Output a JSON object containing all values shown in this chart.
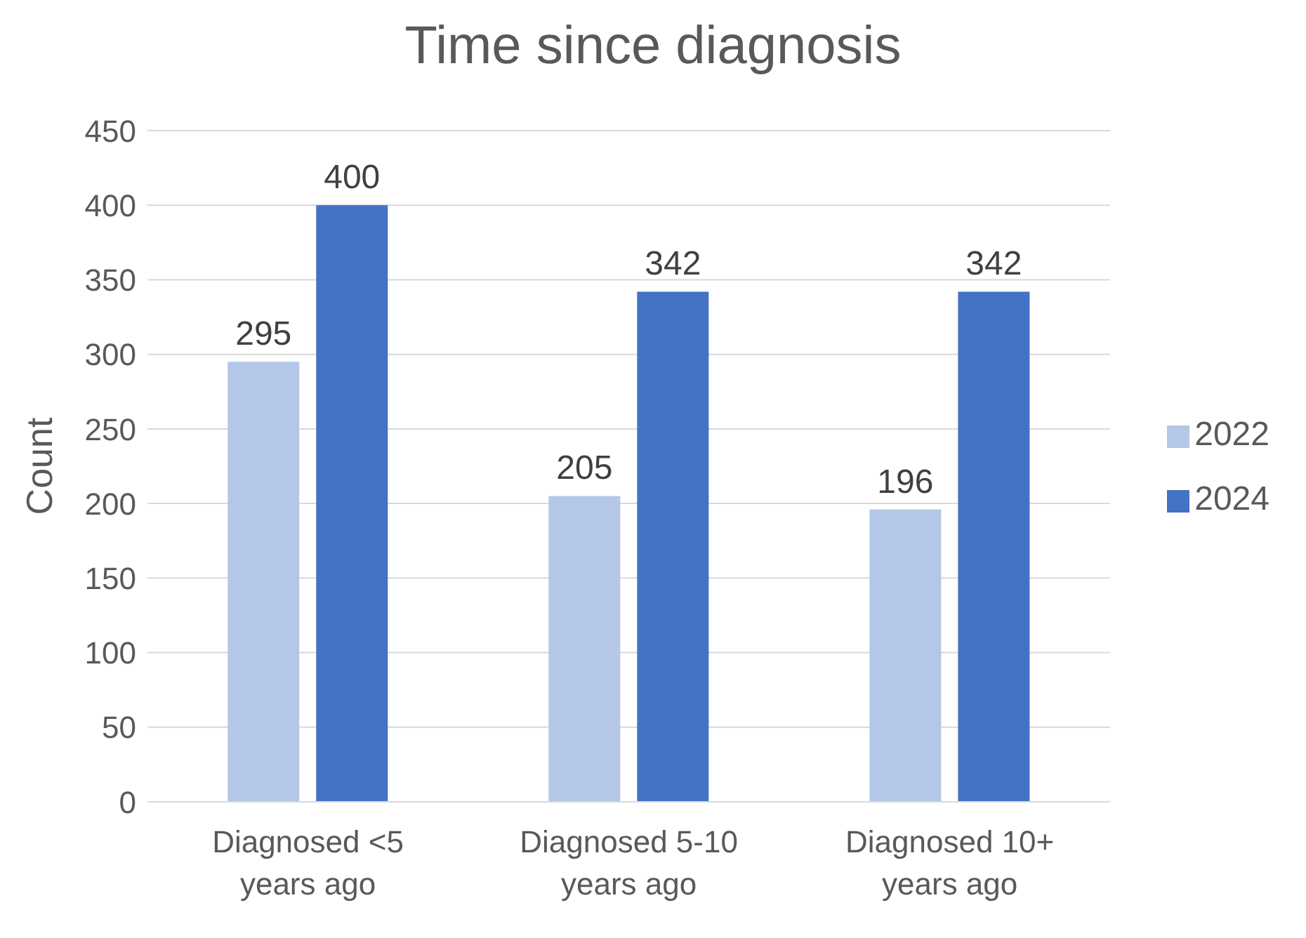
{
  "chart_data": {
    "type": "bar",
    "title": "Time since diagnosis",
    "ylabel": "Count",
    "categories": [
      "Diagnosed <5 years ago",
      "Diagnosed 5-10 years ago",
      "Diagnosed 10+ years ago"
    ],
    "series": [
      {
        "name": "2022",
        "color": "#b4c7e7",
        "values": [
          295,
          205,
          196
        ]
      },
      {
        "name": "2024",
        "color": "#4472c4",
        "values": [
          400,
          342,
          342
        ]
      }
    ],
    "ylim": [
      0,
      450
    ],
    "yticks": [
      0,
      50,
      100,
      150,
      200,
      250,
      300,
      350,
      400,
      450
    ],
    "grid": "y",
    "legend": "right",
    "data_labels": true
  }
}
